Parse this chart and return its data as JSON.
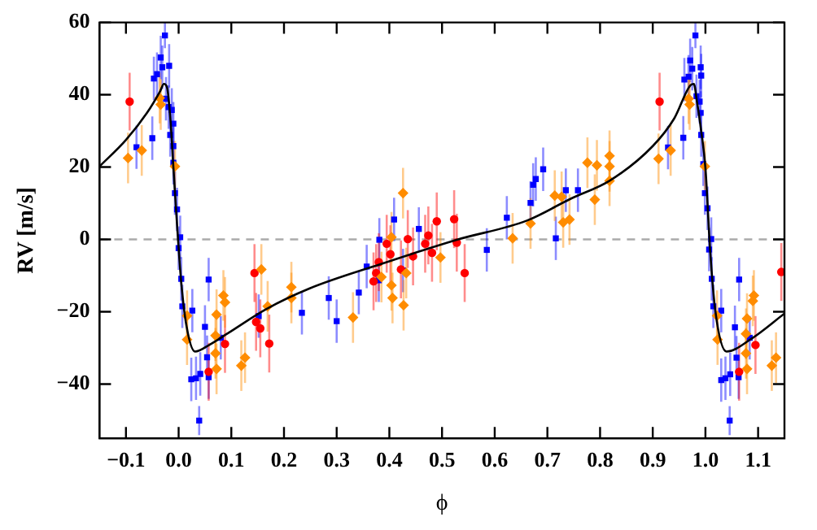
{
  "chart_data": {
    "type": "scatter",
    "xlabel": "ϕ",
    "ylabel": "RV [m/s]",
    "xlim": [
      -0.15,
      1.15
    ],
    "ylim": [
      -55,
      60
    ],
    "xticks": [
      {
        "value": -0.1,
        "label": "−0.1"
      },
      {
        "value": 0,
        "label": "0.0"
      },
      0.1,
      0.2,
      0.3,
      0.4,
      0.5,
      0.6,
      0.7,
      0.8,
      0.9,
      {
        "value": 1,
        "label": "1.0"
      },
      1.1
    ],
    "yticks": [
      {
        "value": -40,
        "label": "−40"
      },
      {
        "value": -20,
        "label": "−20"
      },
      0,
      20,
      40,
      60
    ],
    "grid": false,
    "legend": false,
    "ref_lines": [
      {
        "axis": "y",
        "value": 0,
        "color": "#aaaaaa",
        "line_style": "dashed"
      }
    ],
    "series": [
      {
        "type": "scatter",
        "marker": "square",
        "color": "#0000ff",
        "x": [
          -0.08,
          -0.05,
          -0.047,
          -0.041,
          -0.034,
          -0.031,
          -0.026,
          -0.024,
          -0.019,
          -0.018,
          -0.016,
          -0.013,
          -0.01,
          -0.01,
          -0.01,
          -0.007,
          -0.003,
          0,
          0.003,
          0.005,
          0.007,
          0.024,
          0.026,
          0.033,
          0.039,
          0.041,
          0.05,
          0.054,
          0.057,
          0.057,
          0.08,
          0.152,
          0.234,
          0.285,
          0.3,
          0.342,
          0.357,
          0.38,
          0.381,
          0.409,
          0.426,
          0.456,
          0.585,
          0.623,
          0.668,
          0.673,
          0.678,
          0.692,
          0.716,
          0.735,
          0.758,
          0.929,
          0.958,
          0.96,
          0.968,
          0.971,
          0.975,
          0.981,
          0.983,
          0.989,
          0.991,
          0.991,
          0.992,
          0.992,
          0.996,
          0.999,
          1.004,
          1.007,
          1.011,
          1.012,
          1.015,
          1.03,
          1.03,
          1.038,
          1.046,
          1.047,
          1.056,
          1.059,
          1.063,
          1.064,
          1.084
        ],
        "values": [
          25.5,
          28,
          44.5,
          45.7,
          50.3,
          47.6,
          56.4,
          38.9,
          36.6,
          48,
          28.9,
          35.8,
          32,
          25.8,
          21.2,
          12.8,
          8.3,
          -2.4,
          0.6,
          -10.9,
          -18.5,
          -38.7,
          -19.7,
          -38.4,
          -50.1,
          -37.2,
          -24.2,
          -32.6,
          -11.1,
          -38.1,
          -27.2,
          -21.2,
          -20.3,
          -16.2,
          -22.6,
          -14.7,
          -7.5,
          -11.3,
          -0.1,
          5.5,
          -8.6,
          2.9,
          -2.9,
          6,
          10.1,
          15.1,
          16.7,
          19.4,
          0.3,
          13.6,
          13.6,
          25.4,
          28.1,
          44.2,
          45,
          49.5,
          47.2,
          56.4,
          39.6,
          38.1,
          47.6,
          35,
          45.3,
          28.9,
          20.8,
          12.8,
          8.6,
          -2.8,
          0.1,
          -10.9,
          -18.5,
          -19.7,
          -38.9,
          -38.4,
          -50.1,
          -37.3,
          -24.3,
          -32.7,
          -38.1,
          -11.1,
          -27.2
        ],
        "errors": [
          6,
          6,
          6,
          6,
          6,
          6,
          3.5,
          6,
          6,
          6,
          6,
          6,
          6,
          6,
          6,
          6,
          6,
          6,
          6,
          6,
          6,
          6,
          6,
          6,
          4,
          6,
          6,
          6,
          6,
          6,
          6,
          6,
          6,
          6,
          6,
          6,
          6,
          6,
          6,
          6,
          6,
          6,
          6,
          6,
          6,
          6,
          6,
          6,
          6,
          6,
          6,
          6,
          6,
          6,
          6,
          6,
          6,
          3.5,
          6,
          6,
          6,
          6,
          6,
          6,
          6,
          6,
          6,
          6,
          6,
          6,
          6,
          6,
          6,
          6,
          4,
          6,
          6,
          6,
          6,
          6,
          6
        ]
      },
      {
        "type": "scatter",
        "marker": "circle",
        "color": "#ff0000",
        "x": [
          -0.093,
          0.057,
          0.088,
          0.144,
          0.147,
          0.155,
          0.172,
          0.37,
          0.375,
          0.38,
          0.395,
          0.402,
          0.422,
          0.435,
          0.445,
          0.468,
          0.474,
          0.481,
          0.49,
          0.523,
          0.528,
          0.543,
          0.913,
          1.064,
          1.095,
          1.144
        ],
        "values": [
          38.1,
          -36.6,
          -28.9,
          -9.3,
          -22.8,
          -24.6,
          -28.8,
          -11.6,
          -9.3,
          -6.3,
          -1.2,
          -4.1,
          -8.3,
          0.1,
          -4.7,
          -1.2,
          1.1,
          -3.7,
          5,
          5.6,
          -0.9,
          -9.3,
          38.1,
          -36.6,
          -29.2,
          -9
        ],
        "errors": [
          8,
          8,
          8,
          8,
          8,
          8,
          8,
          8,
          8,
          8,
          8,
          8,
          8,
          8,
          8,
          8,
          8,
          8,
          8,
          8,
          8,
          8,
          8,
          8,
          8,
          8
        ]
      },
      {
        "type": "scatter",
        "marker": "diamond",
        "color": "#ff8c00",
        "x": [
          -0.096,
          -0.07,
          -0.036,
          -0.034,
          -0.007,
          0.016,
          0.016,
          0.07,
          0.072,
          0.07,
          0.072,
          0.085,
          0.088,
          0.119,
          0.126,
          0.157,
          0.169,
          0.214,
          0.214,
          0.331,
          0.385,
          0.404,
          0.404,
          0.406,
          0.426,
          0.427,
          0.432,
          0.497,
          0.634,
          0.668,
          0.714,
          0.727,
          0.73,
          0.742,
          0.776,
          0.79,
          0.794,
          0.818,
          0.818,
          0.818,
          0.911,
          0.934,
          0.968,
          0.97,
          0.999,
          1.022,
          1.023,
          1.077,
          1.079,
          1.077,
          1.079,
          1.09,
          1.092,
          1.126,
          1.134
        ],
        "values": [
          22.5,
          24.6,
          39.1,
          37.3,
          20.2,
          -21.1,
          -27.7,
          -26.6,
          -20.8,
          -31.5,
          -35.8,
          -15.5,
          -17.4,
          -34.9,
          -32.7,
          -8.3,
          -18.5,
          -13.2,
          -16.2,
          -21.6,
          -10.4,
          0.6,
          -12.7,
          -16.2,
          12.8,
          -18.2,
          -9.3,
          -5,
          0.3,
          4.4,
          12.1,
          11.8,
          4.7,
          5.5,
          21.2,
          11,
          20.5,
          23.1,
          20.2,
          16.2,
          22.3,
          24.6,
          38.9,
          37.3,
          20.2,
          -21.1,
          -27.7,
          -26.1,
          -21.9,
          -31.5,
          -35.8,
          -17,
          -15.5,
          -34.9,
          -32.7
        ],
        "errors": [
          7,
          7,
          7,
          7,
          7,
          7,
          7,
          7,
          7,
          7,
          7,
          7,
          7,
          7,
          7,
          7,
          7,
          7,
          7,
          7,
          7,
          7,
          7,
          7,
          7,
          7,
          7,
          7,
          7,
          7,
          7,
          7,
          7,
          7,
          7,
          7,
          7,
          7,
          7,
          7,
          7,
          7,
          7,
          7,
          7,
          7,
          7,
          7,
          7,
          7,
          7,
          7,
          7,
          7,
          7
        ]
      },
      {
        "type": "line",
        "marker": "none",
        "color": "#000000",
        "x": [
          -0.15,
          -0.1,
          -0.06,
          -0.035,
          -0.028,
          -0.022,
          -0.015,
          -0.01,
          -0.003,
          0.005,
          0.015,
          0.031,
          0.06,
          0.093,
          0.166,
          0.248,
          0.382,
          0.528,
          0.661,
          0.745,
          0.818,
          0.9,
          0.941,
          0.972,
          0.978,
          0.984,
          0.992,
          1.0,
          1.009,
          1.019,
          1.04,
          1.087,
          1.15
        ],
        "values": [
          20.2,
          27.5,
          35,
          41,
          43,
          42,
          32,
          20,
          4,
          -12,
          -24,
          -31,
          -29,
          -26,
          -19.3,
          -13.6,
          -6.9,
          -0.1,
          5.2,
          11.3,
          16.2,
          25.8,
          33.5,
          42.7,
          43,
          38,
          30,
          19.7,
          -3.2,
          -20,
          -31,
          -27.5,
          -20.5
        ]
      }
    ]
  }
}
